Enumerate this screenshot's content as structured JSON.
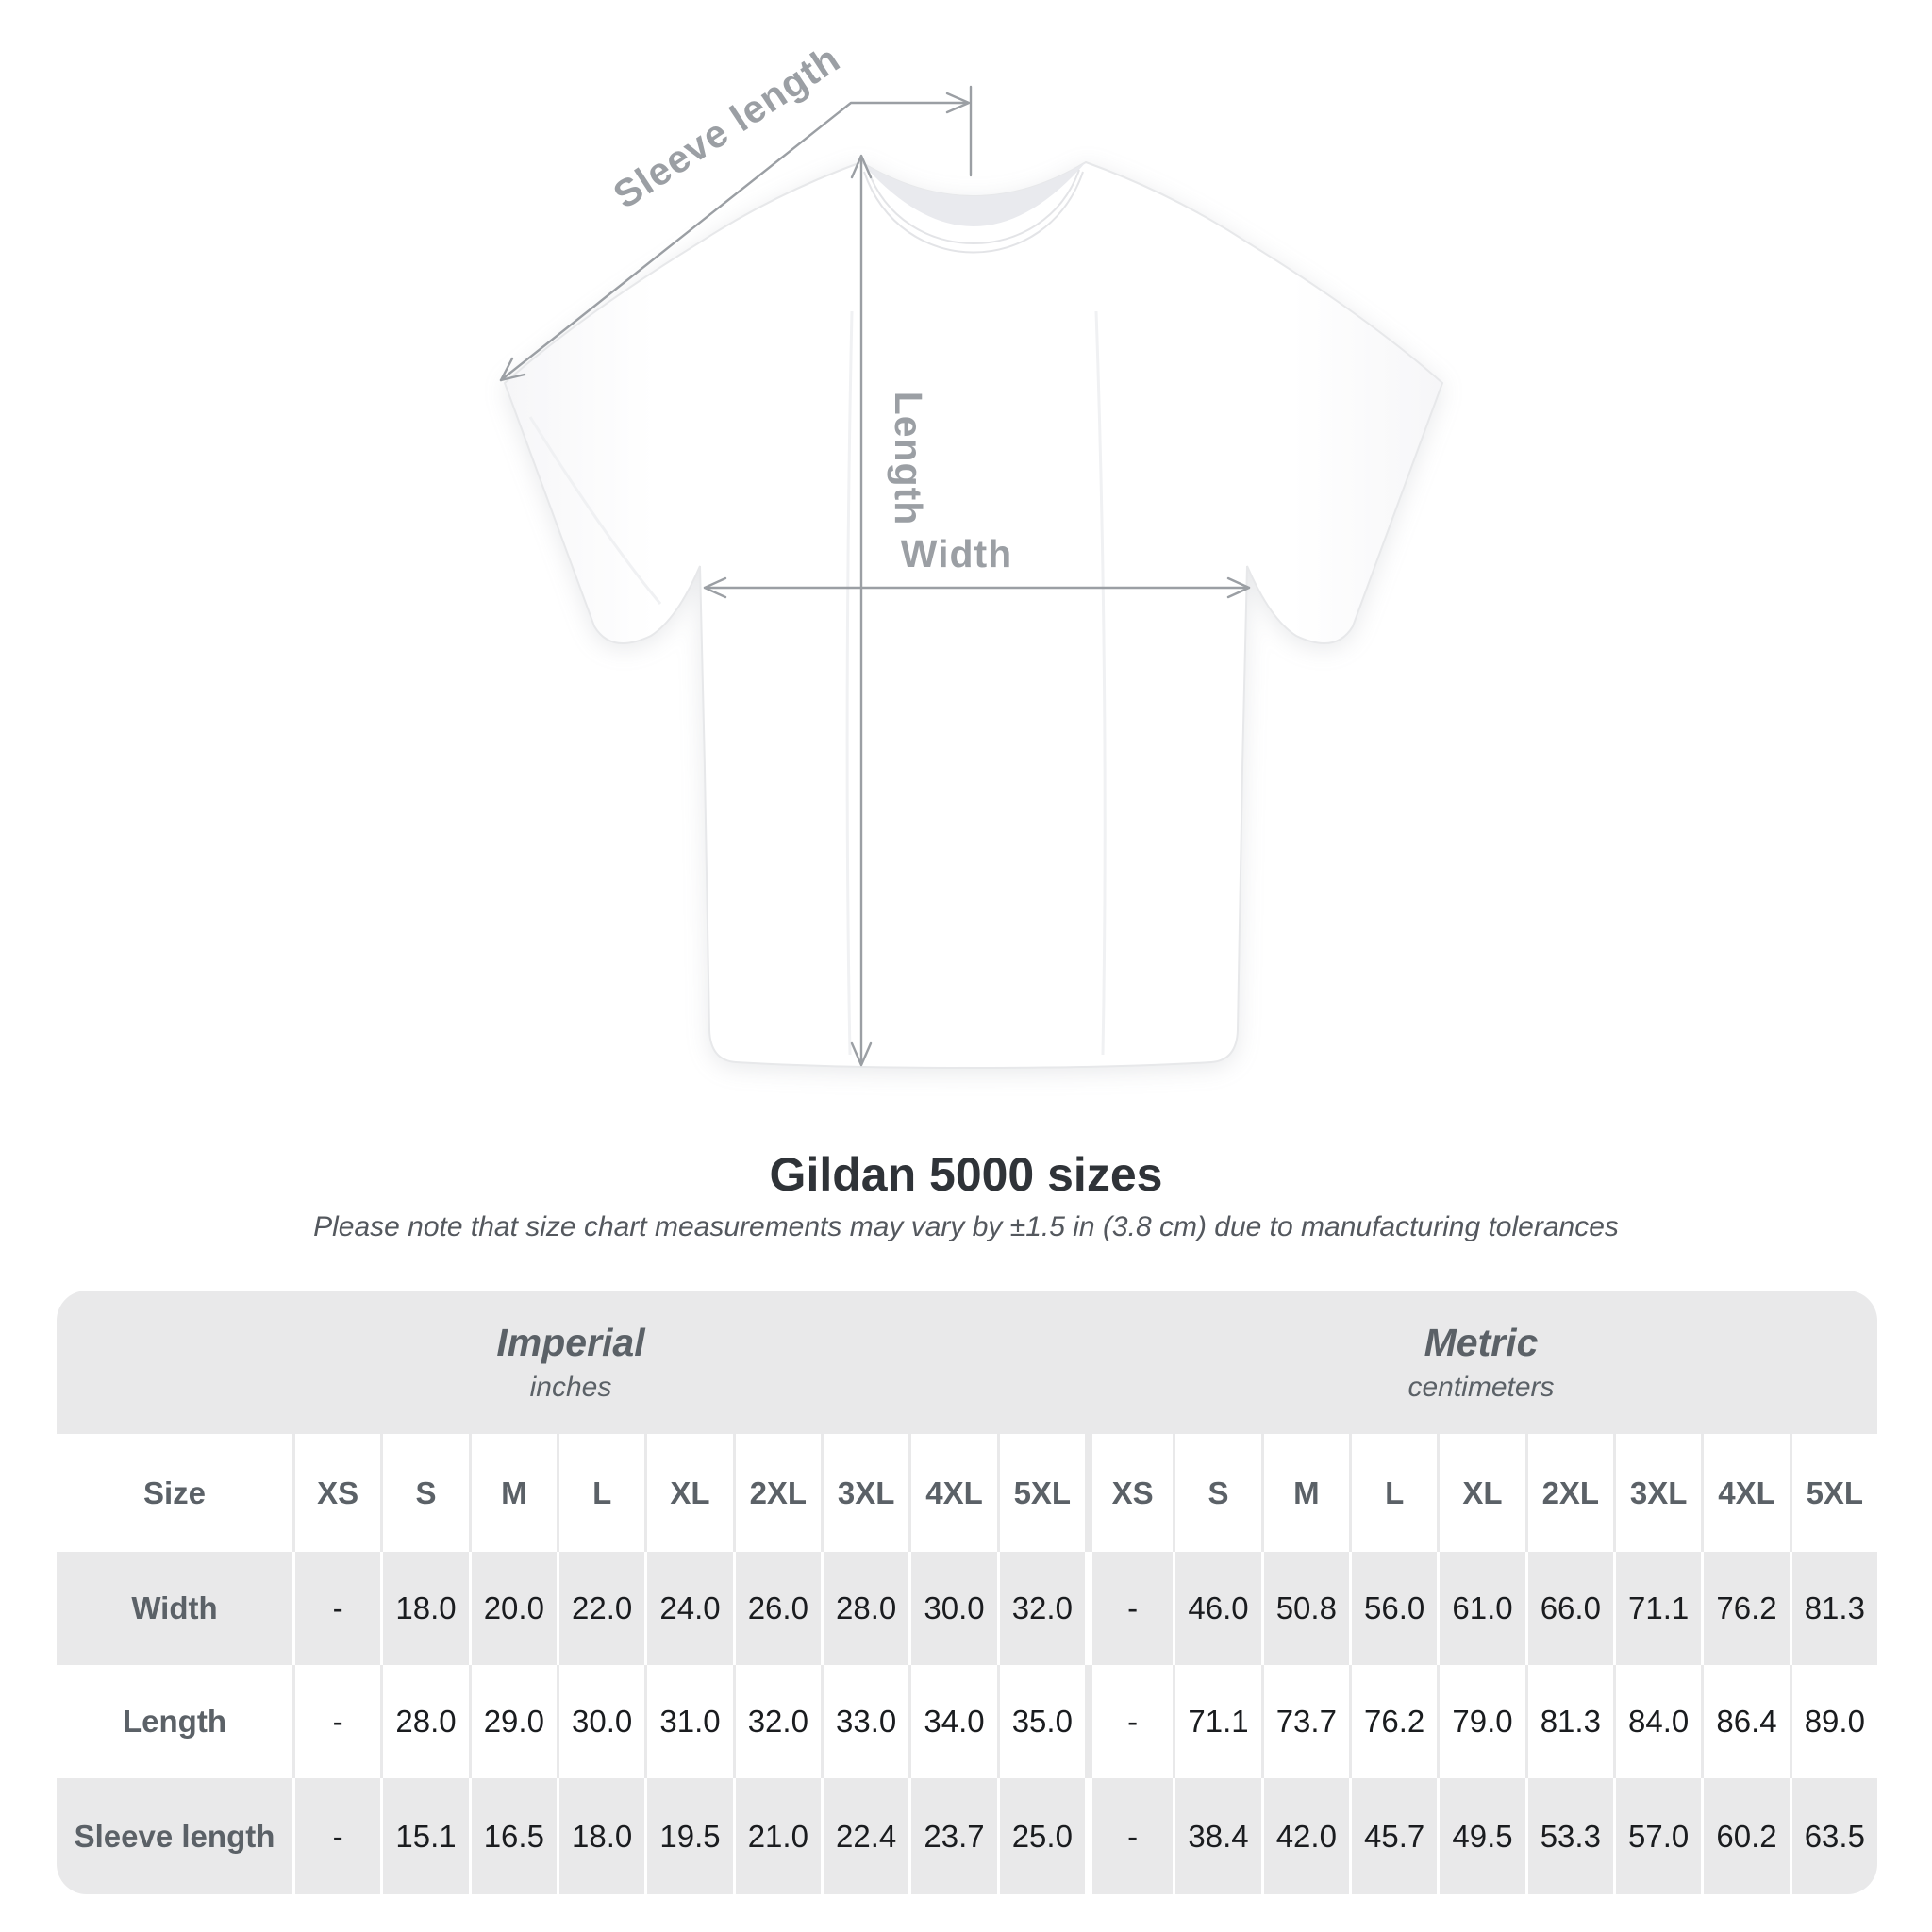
{
  "diagram": {
    "sleeve_length_label": "Sleeve length",
    "length_label": "Length",
    "width_label": "Width",
    "line_color": "#9b9fa4",
    "label_color": "#9b9fa4"
  },
  "title": "Gildan 5000 sizes",
  "subtitle": "Please note that size chart measurements may vary by ±1.5 in (3.8 cm) due to manufacturing tolerances",
  "table": {
    "unit_groups": [
      {
        "label": "Imperial",
        "sublabel": "inches"
      },
      {
        "label": "Metric",
        "sublabel": "centimeters"
      }
    ],
    "size_column_header": "Size",
    "sizes": [
      "XS",
      "S",
      "M",
      "L",
      "XL",
      "2XL",
      "3XL",
      "4XL",
      "5XL"
    ],
    "rows": [
      {
        "label": "Width",
        "imperial": [
          "-",
          "18.0",
          "20.0",
          "22.0",
          "24.0",
          "26.0",
          "28.0",
          "30.0",
          "32.0"
        ],
        "metric": [
          "-",
          "46.0",
          "50.8",
          "56.0",
          "61.0",
          "66.0",
          "71.1",
          "76.2",
          "81.3"
        ]
      },
      {
        "label": "Length",
        "imperial": [
          "-",
          "28.0",
          "29.0",
          "30.0",
          "31.0",
          "32.0",
          "33.0",
          "34.0",
          "35.0"
        ],
        "metric": [
          "-",
          "71.1",
          "73.7",
          "76.2",
          "79.0",
          "81.3",
          "84.0",
          "86.4",
          "89.0"
        ]
      },
      {
        "label": "Sleeve length",
        "imperial": [
          "-",
          "15.1",
          "16.5",
          "18.0",
          "19.5",
          "21.0",
          "22.4",
          "23.7",
          "25.0"
        ],
        "metric": [
          "-",
          "38.4",
          "42.0",
          "45.7",
          "49.5",
          "53.3",
          "57.0",
          "60.2",
          "63.5"
        ]
      }
    ],
    "colors": {
      "band_bg": "#e9e9ea",
      "header_text": "#5b6167",
      "value_text": "#1a1c1f"
    }
  },
  "chart_data": {
    "type": "table",
    "title": "Gildan 5000 sizes",
    "note": "Measurements may vary by ±1.5 in (3.8 cm) due to manufacturing tolerances",
    "unit_groups": [
      "Imperial (inches)",
      "Metric (centimeters)"
    ],
    "sizes": [
      "XS",
      "S",
      "M",
      "L",
      "XL",
      "2XL",
      "3XL",
      "4XL",
      "5XL"
    ],
    "rows": [
      {
        "measurement": "Width",
        "imperial_in": [
          null,
          18.0,
          20.0,
          22.0,
          24.0,
          26.0,
          28.0,
          30.0,
          32.0
        ],
        "metric_cm": [
          null,
          46.0,
          50.8,
          56.0,
          61.0,
          66.0,
          71.1,
          76.2,
          81.3
        ]
      },
      {
        "measurement": "Length",
        "imperial_in": [
          null,
          28.0,
          29.0,
          30.0,
          31.0,
          32.0,
          33.0,
          34.0,
          35.0
        ],
        "metric_cm": [
          null,
          71.1,
          73.7,
          76.2,
          79.0,
          81.3,
          84.0,
          86.4,
          89.0
        ]
      },
      {
        "measurement": "Sleeve length",
        "imperial_in": [
          null,
          15.1,
          16.5,
          18.0,
          19.5,
          21.0,
          22.4,
          23.7,
          25.0
        ],
        "metric_cm": [
          null,
          38.4,
          42.0,
          45.7,
          49.5,
          53.3,
          57.0,
          60.2,
          63.5
        ]
      }
    ]
  }
}
